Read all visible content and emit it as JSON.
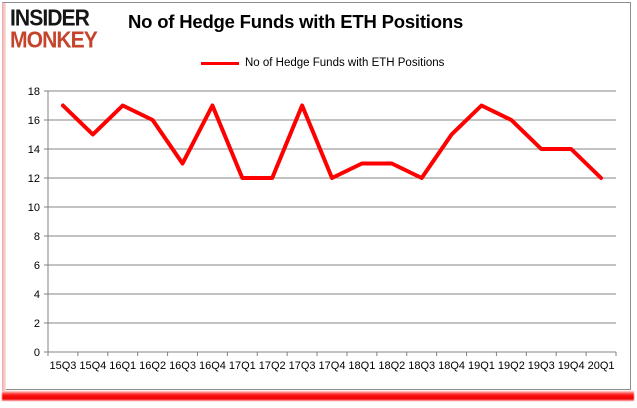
{
  "branding": {
    "logo_line1": "INSIDER",
    "logo_line2": "MONKEY"
  },
  "title": "No of Hedge Funds with ETH Positions",
  "legend": {
    "label": "No of Hedge Funds with ETH Positions",
    "line_color": "#ff0000"
  },
  "chart_data": {
    "type": "line",
    "title": "No of Hedge Funds with ETH Positions",
    "categories": [
      "15Q3",
      "15Q4",
      "16Q1",
      "16Q2",
      "16Q3",
      "16Q4",
      "17Q1",
      "17Q2",
      "17Q3",
      "17Q4",
      "18Q1",
      "18Q2",
      "18Q3",
      "18Q4",
      "19Q1",
      "19Q2",
      "19Q3",
      "19Q4",
      "20Q1"
    ],
    "series": [
      {
        "name": "No of Hedge Funds with ETH Positions",
        "color": "#ff0000",
        "values": [
          17,
          15,
          17,
          16,
          13,
          17,
          12,
          12,
          17,
          12,
          13,
          13,
          12,
          15,
          17,
          16,
          14,
          14,
          12
        ]
      }
    ],
    "xlabel": "",
    "ylabel": "",
    "ylim": [
      0,
      18
    ],
    "ytick_step": 2,
    "grid": true,
    "legend_position": "top",
    "gridline_color": "#848484",
    "axis_color": "#808080"
  },
  "colors": {
    "logo_black": "#151515",
    "logo_red": "#c5452c",
    "line_red": "#ff0000",
    "frame_gray": "#8e8e8e",
    "glow_red": "#ec0000"
  }
}
